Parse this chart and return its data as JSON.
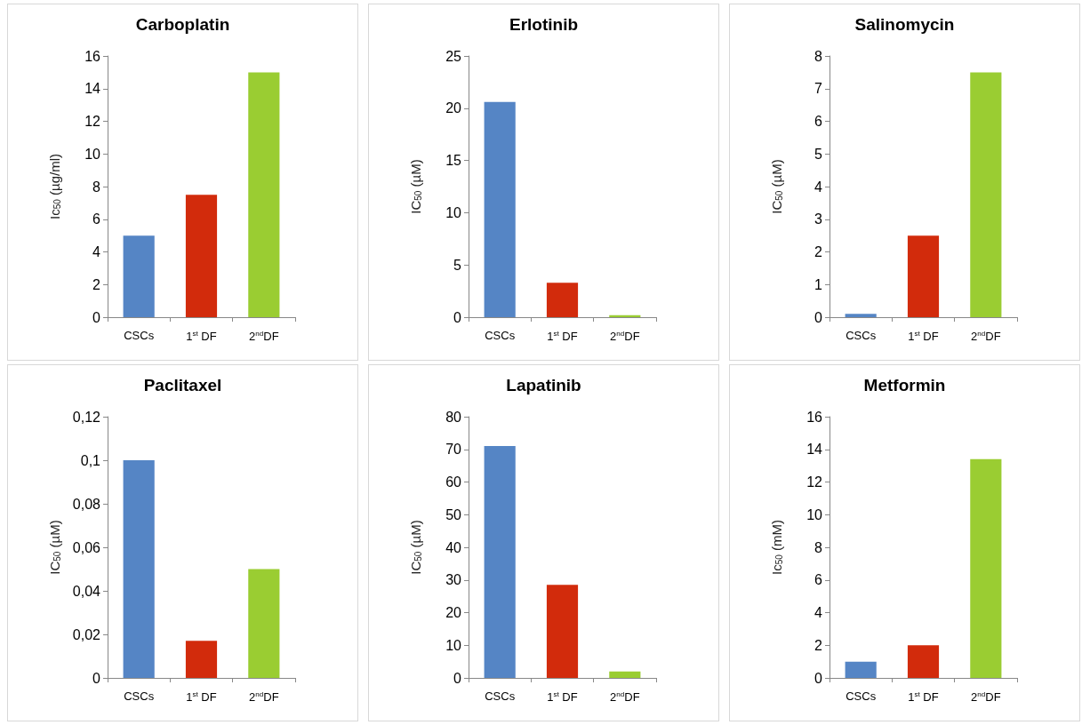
{
  "chart_data": [
    {
      "type": "bar",
      "title": "Carboplatin",
      "ylabel": "Ic$_{50}$ (µg/ml)",
      "categories": [
        "CSCs",
        "1$^{st}$ DF",
        "2$^{nd}$DF"
      ],
      "values": [
        5,
        7.5,
        15
      ],
      "colors": [
        "#5585c5",
        "#d22b0c",
        "#9acd32"
      ],
      "ylim": [
        0,
        16
      ],
      "yticks": [
        0,
        2,
        4,
        6,
        8,
        10,
        12,
        14,
        16
      ]
    },
    {
      "type": "bar",
      "title": "Erlotinib",
      "ylabel": "IC$_{50}$ (µM)",
      "categories": [
        "CSCs",
        "1$^{st}$ DF",
        "2$^{nd}$DF"
      ],
      "values": [
        20.6,
        3.3,
        0.2
      ],
      "colors": [
        "#5585c5",
        "#d22b0c",
        "#9acd32"
      ],
      "ylim": [
        0,
        25
      ],
      "yticks": [
        0,
        5,
        10,
        15,
        20,
        25
      ]
    },
    {
      "type": "bar",
      "title": "Salinomycin",
      "ylabel": "IC$_{50}$ (µM)",
      "categories": [
        "CSCs",
        "1$^{st}$ DF",
        "2$^{nd}$DF"
      ],
      "values": [
        0.1,
        2.5,
        7.5
      ],
      "colors": [
        "#5585c5",
        "#d22b0c",
        "#9acd32"
      ],
      "ylim": [
        0,
        8
      ],
      "yticks": [
        0,
        1,
        2,
        3,
        4,
        5,
        6,
        7,
        8
      ]
    },
    {
      "type": "bar",
      "title": "Paclitaxel",
      "ylabel": "IC$_{50}$ (µM)",
      "categories": [
        "CSCs",
        "1$^{st}$ DF",
        "2$^{nd}$DF"
      ],
      "values": [
        0.1,
        0.017,
        0.05
      ],
      "colors": [
        "#5585c5",
        "#d22b0c",
        "#9acd32"
      ],
      "ylim": [
        0,
        0.12
      ],
      "yticks": [
        0,
        {
          "value": 0.02,
          "label": "0,02"
        },
        {
          "value": 0.04,
          "label": "0,04"
        },
        {
          "value": 0.06,
          "label": "0,06"
        },
        {
          "value": 0.08,
          "label": "0,08"
        },
        {
          "value": 0.1,
          "label": "0,1"
        },
        {
          "value": 0.12,
          "label": "0,12"
        }
      ]
    },
    {
      "type": "bar",
      "title": "Lapatinib",
      "ylabel": "IC$_{50}$ (µM)",
      "categories": [
        "CSCs",
        "1$^{st}$ DF",
        "2$^{nd}$DF"
      ],
      "values": [
        71,
        28.5,
        2
      ],
      "colors": [
        "#5585c5",
        "#d22b0c",
        "#9acd32"
      ],
      "ylim": [
        0,
        80
      ],
      "yticks": [
        0,
        10,
        20,
        30,
        40,
        50,
        60,
        70,
        80
      ]
    },
    {
      "type": "bar",
      "title": "Metformin",
      "ylabel": "Ic$_{50}$ (mM)",
      "categories": [
        "CSCs",
        "1$^{st}$ DF",
        "2$^{nd}$DF"
      ],
      "values": [
        1,
        2,
        13.4
      ],
      "colors": [
        "#5585c5",
        "#d22b0c",
        "#9acd32"
      ],
      "ylim": [
        0,
        16
      ],
      "yticks": [
        0,
        2,
        4,
        6,
        8,
        10,
        12,
        14,
        16
      ]
    }
  ]
}
